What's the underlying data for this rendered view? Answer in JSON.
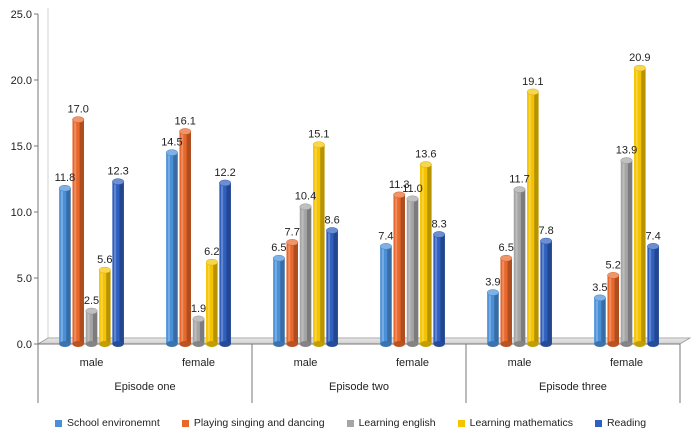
{
  "chart_data": {
    "type": "bar",
    "groups": [
      {
        "label": "Episode one",
        "categories": [
          "male",
          "female"
        ]
      },
      {
        "label": "Episode two",
        "categories": [
          "male",
          "female"
        ]
      },
      {
        "label": "Episode three",
        "categories": [
          "male",
          "female"
        ]
      }
    ],
    "series": [
      {
        "name": "School environemnt",
        "color": "#4a90d9",
        "values": [
          11.8,
          14.5,
          6.5,
          7.4,
          3.9,
          3.5
        ]
      },
      {
        "name": "Playing singing and dancing",
        "color": "#e8672a",
        "values": [
          17.0,
          16.1,
          7.7,
          11.3,
          6.5,
          5.2
        ]
      },
      {
        "name": "Learning english",
        "color": "#a5a5a5",
        "values": [
          2.5,
          1.9,
          10.4,
          11.0,
          11.7,
          13.9
        ]
      },
      {
        "name": "Learning mathematics",
        "color": "#f5c400",
        "values": [
          5.6,
          6.2,
          15.1,
          13.6,
          19.1,
          20.9
        ]
      },
      {
        "name": "Reading",
        "color": "#2f5fbf",
        "values": [
          12.3,
          12.2,
          8.6,
          8.3,
          7.8,
          7.4
        ]
      }
    ],
    "ylim": [
      0,
      25
    ],
    "yticks": [
      "0.0",
      "5.0",
      "10.0",
      "15.0",
      "20.0",
      "25.0"
    ],
    "grid": false,
    "legend_position": "bottom"
  }
}
